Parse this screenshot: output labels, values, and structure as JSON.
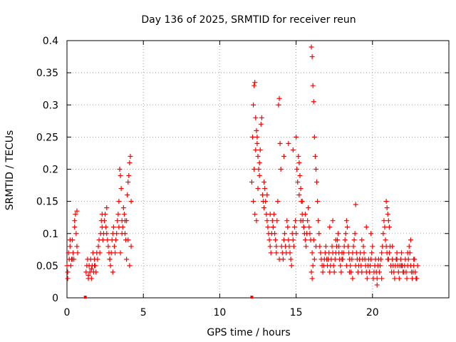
{
  "chart_data": {
    "type": "scatter",
    "title": "Day 136 of 2025, SRMTID for receiver reun",
    "xlabel": "GPS time / hours",
    "ylabel": "SRMTID / TECUs",
    "xlim": [
      0,
      25
    ],
    "ylim": [
      0,
      0.4
    ],
    "xticks": [
      0,
      5,
      10,
      15,
      20
    ],
    "xtick_labels": [
      "0",
      "5",
      "10",
      "15",
      "20"
    ],
    "yticks": [
      0,
      0.05,
      0.1,
      0.15,
      0.2,
      0.25,
      0.3,
      0.35,
      0.4
    ],
    "ytick_labels": [
      "0",
      "0.05",
      "0.1",
      "0.15",
      "0.2",
      "0.25",
      "0.3",
      "0.35",
      "0.4"
    ],
    "grid": true,
    "marker": "+",
    "color": "#ff0000",
    "series": [
      {
        "name": "SRMTID",
        "x": [
          0.0,
          0.05,
          0.1,
          0.15,
          0.2,
          0.25,
          0.3,
          0.35,
          0.4,
          0.45,
          0.5,
          0.55,
          0.6,
          0.65,
          0.7,
          0.05,
          0.2,
          0.35,
          0.5,
          0.65,
          1.25,
          1.3,
          1.35,
          1.4,
          1.45,
          1.5,
          1.55,
          1.6,
          1.65,
          1.7,
          1.75,
          1.8,
          1.85,
          1.9,
          1.95,
          2.0,
          1.4,
          1.6,
          1.8,
          2.05,
          2.1,
          2.15,
          2.2,
          2.25,
          2.3,
          2.35,
          2.4,
          2.45,
          2.5,
          2.55,
          2.6,
          2.65,
          2.7,
          2.75,
          2.8,
          2.85,
          2.9,
          2.95,
          3.0,
          3.05,
          3.1,
          3.15,
          3.2,
          3.25,
          3.3,
          2.3,
          2.6,
          2.8,
          3.0,
          3.35,
          3.4,
          3.45,
          3.5,
          3.55,
          3.6,
          3.65,
          3.7,
          3.75,
          3.8,
          3.85,
          3.9,
          3.95,
          4.0,
          4.05,
          4.1,
          4.15,
          4.2,
          3.4,
          3.6,
          3.8,
          4.0,
          4.2,
          3.5,
          3.9,
          4.1,
          12.1,
          12.15,
          12.2,
          12.25,
          12.3,
          12.35,
          12.4,
          12.45,
          12.5,
          12.55,
          12.6,
          12.65,
          12.7,
          12.75,
          12.2,
          12.3,
          12.4,
          12.5,
          12.6,
          12.25,
          12.35,
          12.45,
          12.8,
          12.85,
          12.9,
          12.95,
          13.0,
          13.05,
          13.1,
          13.15,
          13.2,
          13.25,
          13.3,
          13.35,
          13.4,
          13.45,
          13.5,
          13.55,
          13.6,
          13.65,
          13.7,
          13.75,
          13.8,
          13.85,
          13.9,
          13.95,
          14.0,
          12.9,
          13.1,
          13.3,
          13.5,
          13.7,
          13.9,
          14.05,
          14.1,
          14.15,
          14.2,
          14.25,
          14.3,
          14.35,
          14.4,
          14.45,
          14.5,
          14.55,
          14.6,
          14.65,
          14.7,
          14.75,
          14.8,
          14.85,
          14.9,
          14.95,
          15.0,
          14.2,
          14.5,
          14.8,
          15.0,
          15.05,
          15.1,
          15.15,
          15.2,
          15.25,
          15.3,
          15.35,
          15.4,
          15.45,
          15.5,
          15.55,
          15.6,
          15.65,
          15.7,
          15.75,
          15.8,
          15.85,
          15.9,
          15.95,
          15.2,
          15.4,
          15.6,
          15.3,
          15.5,
          16.0,
          16.05,
          16.1,
          16.15,
          16.2,
          16.25,
          16.3,
          16.35,
          16.4,
          16.45,
          16.5,
          16.55,
          16.6,
          16.65,
          16.7,
          16.75,
          16.8,
          16.85,
          16.9,
          16.95,
          17.0,
          16.05,
          16.0,
          16.1,
          16.2,
          16.05,
          16.3,
          16.15,
          17.05,
          17.1,
          17.15,
          17.2,
          17.25,
          17.3,
          17.35,
          17.4,
          17.45,
          17.5,
          17.55,
          17.6,
          17.65,
          17.7,
          17.75,
          17.8,
          17.85,
          17.9,
          17.95,
          18.0,
          17.2,
          17.4,
          17.6,
          17.8,
          18.0,
          18.05,
          18.1,
          18.15,
          18.2,
          18.25,
          18.3,
          18.35,
          18.4,
          18.45,
          18.5,
          18.55,
          18.6,
          18.65,
          18.7,
          18.75,
          18.8,
          18.85,
          18.9,
          18.95,
          19.0,
          18.3,
          18.5,
          18.7,
          18.9,
          19.05,
          19.1,
          19.15,
          19.2,
          19.25,
          19.3,
          19.35,
          19.4,
          19.45,
          19.5,
          19.55,
          19.6,
          19.65,
          19.7,
          19.75,
          19.8,
          19.85,
          19.9,
          19.95,
          20.0,
          19.3,
          19.6,
          19.9,
          20.05,
          20.1,
          20.15,
          20.2,
          20.25,
          20.3,
          20.35,
          20.4,
          20.45,
          20.5,
          20.55,
          20.6,
          20.65,
          20.7,
          20.75,
          20.8,
          20.85,
          20.9,
          20.95,
          21.0,
          20.9,
          20.95,
          21.0,
          21.05,
          21.1,
          20.3,
          20.6,
          21.05,
          21.1,
          21.15,
          21.2,
          21.25,
          21.3,
          21.35,
          21.4,
          21.45,
          21.5,
          21.55,
          21.6,
          21.65,
          21.7,
          21.75,
          21.8,
          21.85,
          21.9,
          21.95,
          22.0,
          21.3,
          21.6,
          21.9,
          22.05,
          22.1,
          22.15,
          22.2,
          22.25,
          22.3,
          22.35,
          22.4,
          22.45,
          22.5,
          22.55,
          22.6,
          22.65,
          22.7,
          22.75,
          22.8,
          22.85,
          22.9,
          22.95,
          22.5,
          22.7,
          22.3
        ],
        "y": [
          0.05,
          0.03,
          0.07,
          0.06,
          0.08,
          0.05,
          0.06,
          0.09,
          0.07,
          0.06,
          0.11,
          0.13,
          0.1,
          0.08,
          0.07,
          0.04,
          0.09,
          0.06,
          0.12,
          0.135,
          0.04,
          0.05,
          0.06,
          0.03,
          0.05,
          0.04,
          0.06,
          0.03,
          0.05,
          0.07,
          0.04,
          0.06,
          0.05,
          0.04,
          0.07,
          0.06,
          0.035,
          0.045,
          0.05,
          0.08,
          0.09,
          0.07,
          0.1,
          0.12,
          0.11,
          0.09,
          0.1,
          0.12,
          0.13,
          0.11,
          0.1,
          0.09,
          0.08,
          0.07,
          0.06,
          0.05,
          0.07,
          0.09,
          0.1,
          0.11,
          0.08,
          0.07,
          0.09,
          0.1,
          0.12,
          0.13,
          0.14,
          0.06,
          0.04,
          0.13,
          0.15,
          0.2,
          0.19,
          0.17,
          0.12,
          0.11,
          0.14,
          0.13,
          0.1,
          0.09,
          0.12,
          0.16,
          0.18,
          0.19,
          0.21,
          0.22,
          0.15,
          0.11,
          0.1,
          0.12,
          0.09,
          0.08,
          0.07,
          0.06,
          0.05,
          0.18,
          0.25,
          0.3,
          0.33,
          0.335,
          0.28,
          0.26,
          0.24,
          0.22,
          0.2,
          0.21,
          0.23,
          0.27,
          0.28,
          0.15,
          0.13,
          0.12,
          0.17,
          0.19,
          0.2,
          0.23,
          0.25,
          0.16,
          0.15,
          0.14,
          0.17,
          0.15,
          0.13,
          0.12,
          0.11,
          0.1,
          0.09,
          0.08,
          0.07,
          0.1,
          0.12,
          0.11,
          0.13,
          0.1,
          0.09,
          0.08,
          0.12,
          0.15,
          0.3,
          0.31,
          0.24,
          0.2,
          0.18,
          0.16,
          0.13,
          0.11,
          0.07,
          0.06,
          0.08,
          0.07,
          0.06,
          0.09,
          0.1,
          0.08,
          0.07,
          0.12,
          0.11,
          0.09,
          0.08,
          0.07,
          0.06,
          0.05,
          0.1,
          0.09,
          0.08,
          0.11,
          0.12,
          0.1,
          0.22,
          0.24,
          0.23,
          0.25,
          0.2,
          0.18,
          0.22,
          0.21,
          0.19,
          0.17,
          0.15,
          0.13,
          0.12,
          0.11,
          0.1,
          0.09,
          0.08,
          0.1,
          0.12,
          0.14,
          0.11,
          0.1,
          0.09,
          0.16,
          0.15,
          0.13,
          0.12,
          0.11,
          0.39,
          0.375,
          0.33,
          0.305,
          0.25,
          0.22,
          0.2,
          0.18,
          0.15,
          0.12,
          0.1,
          0.08,
          0.07,
          0.06,
          0.05,
          0.04,
          0.05,
          0.06,
          0.07,
          0.08,
          0.06,
          0.03,
          0.04,
          0.05,
          0.06,
          0.07,
          0.08,
          0.09,
          0.05,
          0.06,
          0.07,
          0.04,
          0.05,
          0.06,
          0.08,
          0.07,
          0.05,
          0.04,
          0.06,
          0.07,
          0.08,
          0.09,
          0.1,
          0.07,
          0.06,
          0.05,
          0.04,
          0.06,
          0.11,
          0.12,
          0.09,
          0.08,
          0.07,
          0.06,
          0.07,
          0.08,
          0.09,
          0.1,
          0.12,
          0.11,
          0.08,
          0.07,
          0.06,
          0.05,
          0.04,
          0.06,
          0.07,
          0.08,
          0.09,
          0.1,
          0.145,
          0.07,
          0.06,
          0.05,
          0.04,
          0.03,
          0.05,
          0.04,
          0.05,
          0.06,
          0.07,
          0.05,
          0.04,
          0.06,
          0.08,
          0.07,
          0.06,
          0.05,
          0.04,
          0.03,
          0.05,
          0.06,
          0.04,
          0.05,
          0.06,
          0.07,
          0.08,
          0.09,
          0.11,
          0.1,
          0.03,
          0.04,
          0.05,
          0.06,
          0.04,
          0.03,
          0.05,
          0.06,
          0.04,
          0.05,
          0.06,
          0.07,
          0.08,
          0.1,
          0.12,
          0.11,
          0.09,
          0.08,
          0.07,
          0.06,
          0.15,
          0.14,
          0.13,
          0.12,
          0.11,
          0.02,
          0.03,
          0.06,
          0.07,
          0.08,
          0.05,
          0.04,
          0.06,
          0.05,
          0.04,
          0.03,
          0.05,
          0.06,
          0.07,
          0.05,
          0.04,
          0.03,
          0.05,
          0.06,
          0.07,
          0.05,
          0.04,
          0.08,
          0.06,
          0.05,
          0.04,
          0.05,
          0.06,
          0.04,
          0.03,
          0.05,
          0.06,
          0.08,
          0.07,
          0.05,
          0.04,
          0.03,
          0.04,
          0.05,
          0.06,
          0.04,
          0.03,
          0.03,
          0.05,
          0.09,
          0.06,
          0.07
        ]
      }
    ],
    "baseline_marks_x": [
      1.2,
      12.1
    ]
  }
}
